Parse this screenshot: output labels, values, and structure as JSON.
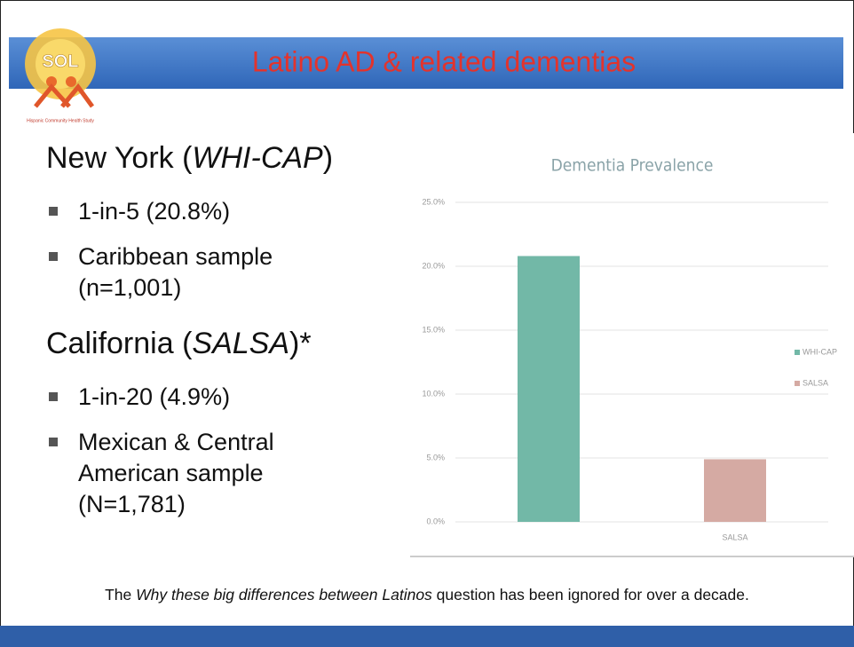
{
  "header": {
    "logo": "SOL",
    "logo_caption": "Hispanic Community Health Study",
    "title": "Latino AD & related dementias"
  },
  "sections": [
    {
      "heading": [
        "New York (",
        "WHI-CAP",
        ")"
      ],
      "bullets": [
        "1-in-5 (20.8%)",
        "Caribbean sample (n=1,001)"
      ]
    },
    {
      "heading": [
        "California (",
        "SALSA",
        ")*"
      ],
      "bullets": [
        "1-in-20 (4.9%)",
        "Mexican & Central American sample (N=1,781)"
      ]
    }
  ],
  "chart_data": {
    "type": "bar",
    "title": "Dementia Prevalence",
    "categories": [
      null,
      "SALSA"
    ],
    "series": [
      {
        "name": "WHI-CAP",
        "color": "#72b8a7",
        "values": [
          20.8,
          null
        ]
      },
      {
        "name": "SALSA",
        "color": "#d5aaa3",
        "values": [
          null,
          4.9
        ]
      }
    ],
    "ylim": [
      0,
      25
    ],
    "yticks": [
      {
        "value": 0,
        "label": "0.0%"
      },
      {
        "value": 5,
        "label": "5.0%"
      },
      {
        "value": 10,
        "label": "10.0%"
      },
      {
        "value": 15,
        "label": "15.0%"
      },
      {
        "value": 20,
        "label": "20.0%"
      },
      {
        "value": 25,
        "label": "25.0%"
      }
    ],
    "grid": true,
    "legend": "right"
  },
  "footer": [
    "The ",
    "Why these big differences between Latinos",
    " question has been ignored for over a decade."
  ]
}
